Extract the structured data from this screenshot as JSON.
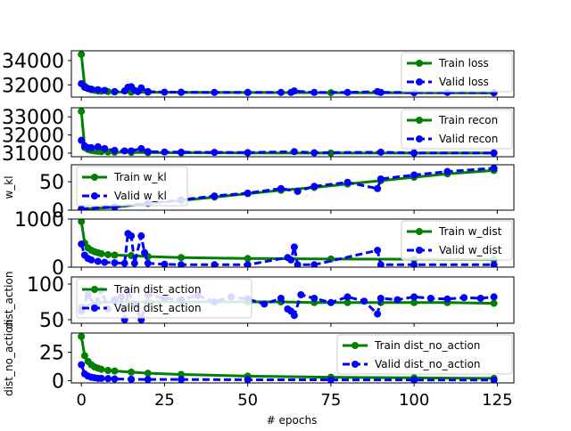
{
  "xlabel": "# epochs",
  "x_ticks": [
    0,
    25,
    50,
    75,
    100,
    125
  ],
  "colors": {
    "train": "#008000",
    "valid": "#0000ff",
    "axis": "#000000"
  },
  "chart_data": [
    {
      "type": "line",
      "ylabel": "",
      "ylim": [
        31000,
        34800
      ],
      "y_ticks": [
        32000,
        34000
      ],
      "legend_position": "top-right",
      "series": [
        {
          "name": "Train loss",
          "style": "solid",
          "x": [
            0,
            1,
            2,
            3,
            4,
            5,
            6,
            8,
            10,
            15,
            20,
            30,
            50,
            75,
            100,
            124
          ],
          "y": [
            34500,
            31900,
            31700,
            31600,
            31550,
            31500,
            31480,
            31450,
            31420,
            31400,
            31390,
            31380,
            31370,
            31360,
            31350,
            31340
          ]
        },
        {
          "name": "Valid loss",
          "style": "dashed",
          "x": [
            0,
            1,
            2,
            3,
            5,
            7,
            10,
            13,
            14,
            15,
            16,
            17,
            18,
            20,
            25,
            30,
            40,
            50,
            60,
            63,
            64,
            70,
            80,
            89,
            90,
            100,
            110,
            124
          ],
          "y": [
            32100,
            31800,
            31700,
            31650,
            31600,
            31550,
            31450,
            31500,
            31800,
            31850,
            31550,
            31450,
            31750,
            31450,
            31400,
            31400,
            31380,
            31380,
            31380,
            31380,
            31500,
            31380,
            31380,
            31450,
            31380,
            31380,
            31380,
            31370
          ]
        }
      ]
    },
    {
      "type": "line",
      "ylabel": "",
      "ylim": [
        30800,
        33500
      ],
      "y_ticks": [
        31000,
        32000,
        33000
      ],
      "legend_position": "top-right",
      "series": [
        {
          "name": "Train recon",
          "style": "solid",
          "x": [
            0,
            1,
            2,
            3,
            4,
            5,
            6,
            8,
            10,
            15,
            20,
            30,
            50,
            75,
            100,
            124
          ],
          "y": [
            33300,
            31300,
            31200,
            31150,
            31120,
            31100,
            31080,
            31060,
            31050,
            31040,
            31030,
            31020,
            31010,
            31005,
            31000,
            31000
          ]
        },
        {
          "name": "Valid recon",
          "style": "dashed",
          "x": [
            0,
            1,
            2,
            3,
            5,
            7,
            10,
            13,
            15,
            18,
            20,
            25,
            30,
            40,
            50,
            64,
            70,
            90,
            100,
            124
          ],
          "y": [
            31700,
            31400,
            31300,
            31300,
            31350,
            31250,
            31150,
            31120,
            31120,
            31250,
            31080,
            31060,
            31050,
            31040,
            31030,
            31080,
            31020,
            31050,
            31010,
            31010
          ]
        }
      ]
    },
    {
      "type": "line",
      "ylabel": "w_kl",
      "ylim": [
        0,
        80
      ],
      "y_ticks": [
        0,
        50
      ],
      "legend_position": "top-left",
      "series": [
        {
          "name": "Train w_kl",
          "style": "solid",
          "x": [
            0,
            10,
            20,
            30,
            40,
            50,
            60,
            70,
            80,
            90,
            100,
            110,
            124
          ],
          "y": [
            2,
            5,
            12,
            17,
            23,
            29,
            35,
            40,
            46,
            52,
            58,
            64,
            70
          ]
        },
        {
          "name": "Valid w_kl",
          "style": "dashed",
          "x": [
            0,
            10,
            20,
            30,
            40,
            50,
            60,
            65,
            70,
            80,
            89,
            90,
            100,
            110,
            124
          ],
          "y": [
            2,
            6,
            12,
            18,
            25,
            30,
            38,
            33,
            42,
            49,
            38,
            55,
            62,
            68,
            74
          ]
        }
      ]
    },
    {
      "type": "line",
      "ylabel": "",
      "ylim": [
        0,
        1000
      ],
      "y_ticks": [
        0,
        1000
      ],
      "legend_position": "top-right",
      "series": [
        {
          "name": "Train w_dist",
          "style": "solid",
          "x": [
            0,
            1,
            2,
            3,
            4,
            5,
            6,
            8,
            10,
            15,
            20,
            30,
            50,
            75,
            100,
            124
          ],
          "y": [
            950,
            500,
            400,
            350,
            320,
            300,
            280,
            260,
            250,
            240,
            220,
            200,
            180,
            170,
            165,
            160
          ]
        },
        {
          "name": "Valid w_dist",
          "style": "dashed",
          "x": [
            0,
            1,
            2,
            3,
            5,
            7,
            10,
            13,
            14,
            15,
            16,
            18,
            19,
            20,
            25,
            30,
            40,
            50,
            62,
            63,
            64,
            65,
            70,
            89,
            90,
            100,
            124
          ],
          "y": [
            480,
            250,
            180,
            150,
            120,
            100,
            90,
            80,
            700,
            650,
            80,
            650,
            300,
            80,
            60,
            50,
            50,
            50,
            200,
            150,
            420,
            50,
            50,
            350,
            50,
            50,
            50
          ]
        }
      ]
    },
    {
      "type": "line",
      "ylabel": "dist_action",
      "ylim": [
        45,
        110
      ],
      "y_ticks": [
        50,
        100
      ],
      "legend_position": "top-left",
      "series": [
        {
          "name": "Train dist_action",
          "style": "solid",
          "x": [
            0,
            5,
            10,
            20,
            30,
            40,
            50,
            60,
            70,
            80,
            90,
            100,
            110,
            124
          ],
          "y": [
            68,
            74,
            75,
            75,
            75,
            75,
            75,
            75,
            74,
            74,
            74,
            74,
            74,
            73
          ]
        },
        {
          "name": "Valid dist_action",
          "style": "dashed",
          "x": [
            0,
            2,
            4,
            6,
            8,
            10,
            12,
            13,
            14,
            16,
            18,
            20,
            25,
            30,
            35,
            40,
            45,
            50,
            55,
            60,
            62,
            63,
            64,
            66,
            70,
            75,
            80,
            85,
            89,
            90,
            95,
            100,
            105,
            110,
            115,
            120,
            124
          ],
          "y": [
            62,
            85,
            70,
            92,
            65,
            78,
            82,
            50,
            90,
            72,
            50,
            85,
            80,
            78,
            84,
            75,
            82,
            79,
            72,
            80,
            65,
            62,
            56,
            85,
            80,
            74,
            82,
            76,
            58,
            80,
            78,
            82,
            80,
            79,
            81,
            80,
            82
          ]
        }
      ]
    },
    {
      "type": "line",
      "ylabel": "dist_no_action",
      "ylim": [
        -2,
        42
      ],
      "y_ticks": [
        0,
        25
      ],
      "legend_position": "top-right",
      "series": [
        {
          "name": "Train dist_no_action",
          "style": "solid",
          "x": [
            0,
            1,
            2,
            3,
            4,
            5,
            6,
            8,
            10,
            15,
            20,
            30,
            50,
            75,
            100,
            124
          ],
          "y": [
            39,
            22,
            17,
            14,
            12,
            11,
            10,
            9,
            8.5,
            7.5,
            6.5,
            5.5,
            4,
            3,
            2.5,
            2
          ]
        },
        {
          "name": "Valid dist_no_action",
          "style": "dashed",
          "x": [
            0,
            1,
            2,
            3,
            4,
            5,
            6,
            8,
            10,
            15,
            20,
            30,
            50,
            75,
            100,
            124
          ],
          "y": [
            14,
            6,
            4,
            3,
            2.5,
            2,
            2,
            1.8,
            1.5,
            1.2,
            1,
            1,
            0.8,
            0.7,
            0.6,
            0.5
          ]
        }
      ]
    }
  ]
}
